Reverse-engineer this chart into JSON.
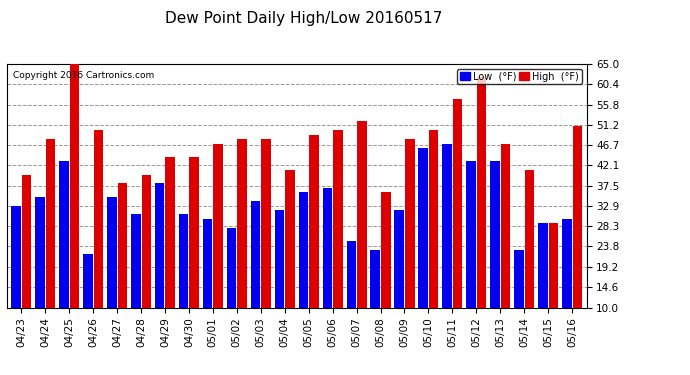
{
  "title": "Dew Point Daily High/Low 20160517",
  "copyright": "Copyright 2016 Cartronics.com",
  "dates": [
    "04/23",
    "04/24",
    "04/25",
    "04/26",
    "04/27",
    "04/28",
    "04/29",
    "04/30",
    "05/01",
    "05/02",
    "05/03",
    "05/04",
    "05/05",
    "05/06",
    "05/07",
    "05/08",
    "05/09",
    "05/10",
    "05/11",
    "05/12",
    "05/13",
    "05/14",
    "05/15",
    "05/16"
  ],
  "low_values": [
    33,
    35,
    43,
    22,
    35,
    31,
    38,
    31,
    30,
    28,
    34,
    32,
    36,
    37,
    25,
    23,
    32,
    46,
    47,
    43,
    43,
    23,
    29,
    30
  ],
  "high_values": [
    40,
    48,
    65,
    50,
    38,
    40,
    44,
    44,
    47,
    48,
    48,
    41,
    49,
    50,
    52,
    36,
    48,
    50,
    57,
    62,
    47,
    41,
    29,
    51
  ],
  "low_color": "#0000ee",
  "high_color": "#dd0000",
  "bg_color": "#ffffff",
  "grid_color": "#999999",
  "ylim_min": 10.0,
  "ylim_max": 65.0,
  "yticks": [
    10.0,
    14.6,
    19.2,
    23.8,
    28.3,
    32.9,
    37.5,
    42.1,
    46.7,
    51.2,
    55.8,
    60.4,
    65.0
  ],
  "legend_low_label": "Low  (°F)",
  "legend_high_label": "High  (°F)",
  "bar_width": 0.4,
  "bar_gap": 0.04
}
